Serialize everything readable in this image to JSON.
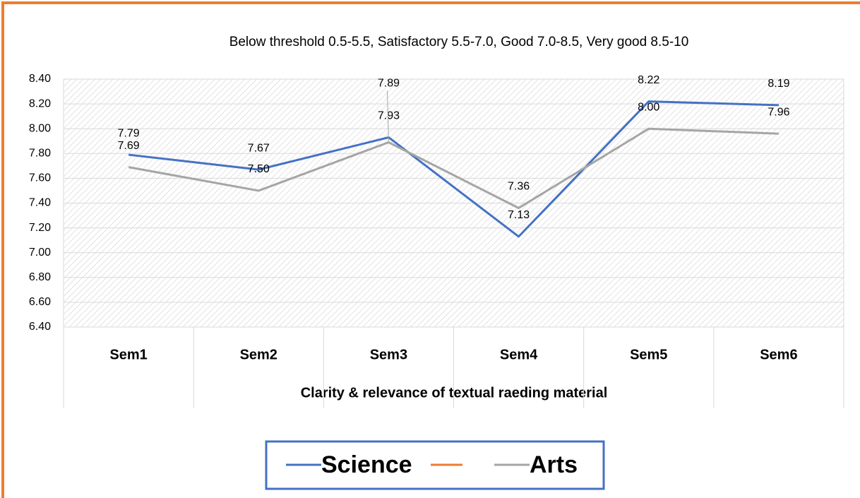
{
  "chart_data": {
    "type": "line",
    "title": "Below threshold 0.5-5.5, Satisfactory 5.5-7.0, Good 7.0-8.5, Very good 8.5-10",
    "x_label": "Clarity & relevance of textual raeding material",
    "categories": [
      "Sem1",
      "Sem2",
      "Sem3",
      "Sem4",
      "Sem5",
      "Sem6"
    ],
    "series": [
      {
        "name": "Science",
        "color": "#4472c4",
        "values": [
          7.79,
          7.67,
          7.93,
          7.13,
          8.22,
          8.19
        ],
        "value_labels": [
          "7.79",
          "7.67",
          "7.93",
          "7.13",
          "8.22",
          "8.19"
        ]
      },
      {
        "name": "Arts",
        "color": "#a5a5a5",
        "values": [
          7.69,
          7.5,
          7.89,
          7.36,
          8.0,
          7.96
        ],
        "value_labels": [
          "7.69",
          "7.50",
          "7.89",
          "7.36",
          "8.00",
          "7.96"
        ]
      }
    ],
    "ylim": [
      6.4,
      8.4
    ],
    "yticks": [
      {
        "value": 6.4,
        "label": "6.40"
      },
      {
        "value": 6.6,
        "label": "6.60"
      },
      {
        "value": 6.8,
        "label": "6.80"
      },
      {
        "value": 7.0,
        "label": "7.00"
      },
      {
        "value": 7.2,
        "label": "7.20"
      },
      {
        "value": 7.4,
        "label": "7.40"
      },
      {
        "value": 7.6,
        "label": "7.60"
      },
      {
        "value": 7.8,
        "label": "7.80"
      },
      {
        "value": 8.0,
        "label": "8.00"
      },
      {
        "value": 8.2,
        "label": "8.20"
      },
      {
        "value": 8.4,
        "label": "8.40"
      }
    ],
    "grid": true,
    "legend": "bottom"
  }
}
